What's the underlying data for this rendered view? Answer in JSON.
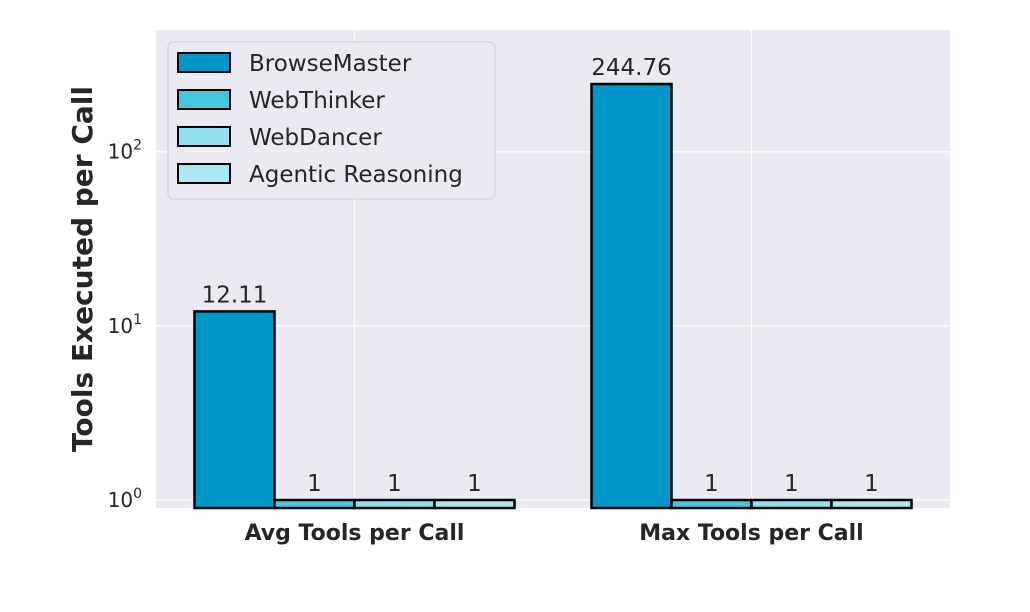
{
  "chart_data": {
    "type": "bar",
    "title": "",
    "xlabel": "",
    "ylabel": "Tools Executed per Call",
    "yscale": "log",
    "ylim": [
      0.9,
      500
    ],
    "yticks": [
      {
        "value": 1,
        "base": "10",
        "exp": "0"
      },
      {
        "value": 10,
        "base": "10",
        "exp": "1"
      },
      {
        "value": 100,
        "base": "10",
        "exp": "2"
      }
    ],
    "categories": [
      "Avg Tools per Call",
      "Max Tools per Call"
    ],
    "series": [
      {
        "name": "BrowseMaster",
        "values": [
          12.11,
          244.76
        ],
        "labels": [
          "12.11",
          "244.76"
        ],
        "color": "#0096c7"
      },
      {
        "name": "WebThinker",
        "values": [
          1,
          1
        ],
        "labels": [
          "1",
          "1"
        ],
        "color": "#48c7dc"
      },
      {
        "name": "WebDancer",
        "values": [
          1,
          1
        ],
        "labels": [
          "1",
          "1"
        ],
        "color": "#90e0ef"
      },
      {
        "name": "Agentic Reasoning",
        "values": [
          1,
          1
        ],
        "labels": [
          "1",
          "1"
        ],
        "color": "#ade8f4"
      }
    ],
    "grid": true,
    "background": "#eaeaf2",
    "legend_position": "upper-left"
  }
}
